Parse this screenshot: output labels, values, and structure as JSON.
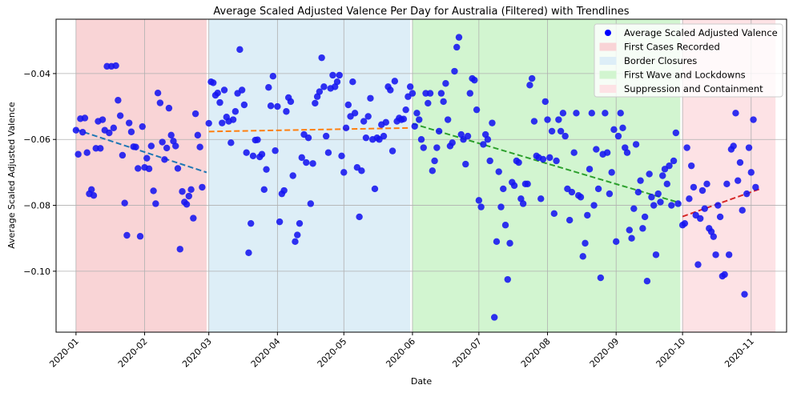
{
  "chart_data": {
    "type": "scatter",
    "title": "Average Scaled Adjusted Valence Per Day for Australia (Filtered) with Trendlines",
    "xlabel": "Date",
    "ylabel": "Average Scaled Adjusted Valence",
    "xlim": [
      "2019-12-23",
      "2020-11-17"
    ],
    "ylim": [
      -0.1185,
      -0.0235
    ],
    "x_ticks": [
      "2020-01",
      "2020-02",
      "2020-03",
      "2020-04",
      "2020-05",
      "2020-06",
      "2020-07",
      "2020-08",
      "2020-09",
      "2020-10",
      "2020-11"
    ],
    "y_ticks": [
      -0.04,
      -0.06,
      -0.08,
      -0.1
    ],
    "grid": true,
    "legend_position": "top-right",
    "points_color": "#1515f0",
    "periods": [
      {
        "name": "First Cases Recorded",
        "start": "2020-01-01",
        "end": "2020-02-29",
        "color": "#f9d4d6"
      },
      {
        "name": "Border Closures",
        "start": "2020-03-01",
        "end": "2020-05-31",
        "color": "#ddeef7"
      },
      {
        "name": "First Wave and Lockdowns",
        "start": "2020-06-01",
        "end": "2020-09-30",
        "color": "#d2f5d0"
      },
      {
        "name": "Suppression and Containment",
        "start": "2020-10-01",
        "end": "2020-11-12",
        "color": "#fde2e5"
      }
    ],
    "legend_scatter_label": "Average Scaled Adjusted Valence",
    "trendlines": [
      {
        "color": "#1f77b4",
        "x": [
          "2020-01-01",
          "2020-02-29"
        ],
        "y": [
          -0.057,
          -0.07
        ]
      },
      {
        "color": "#ff7f0e",
        "x": [
          "2020-03-01",
          "2020-05-31"
        ],
        "y": [
          -0.0576,
          -0.0565
        ]
      },
      {
        "color": "#2ca02c",
        "x": [
          "2020-06-01",
          "2020-09-30"
        ],
        "y": [
          -0.0552,
          -0.0793
        ]
      },
      {
        "color": "#d62728",
        "x": [
          "2020-10-01",
          "2020-11-05"
        ],
        "y": [
          -0.0834,
          -0.075
        ]
      }
    ],
    "points": [
      [
        "2020-01-01",
        -0.0572
      ],
      [
        "2020-01-02",
        -0.0645
      ],
      [
        "2020-01-03",
        -0.0537
      ],
      [
        "2020-01-04",
        -0.0578
      ],
      [
        "2020-01-05",
        -0.0535
      ],
      [
        "2020-01-06",
        -0.064
      ],
      [
        "2020-01-07",
        -0.0765
      ],
      [
        "2020-01-08",
        -0.0752
      ],
      [
        "2020-01-09",
        -0.077
      ],
      [
        "2020-01-10",
        -0.0627
      ],
      [
        "2020-01-11",
        -0.0545
      ],
      [
        "2020-01-12",
        -0.0627
      ],
      [
        "2020-01-13",
        -0.054
      ],
      [
        "2020-01-14",
        -0.0572
      ],
      [
        "2020-01-15",
        -0.0378
      ],
      [
        "2020-01-16",
        -0.058
      ],
      [
        "2020-01-17",
        -0.0378
      ],
      [
        "2020-01-18",
        -0.0565
      ],
      [
        "2020-01-19",
        -0.0376
      ],
      [
        "2020-01-20",
        -0.0481
      ],
      [
        "2020-01-21",
        -0.0528
      ],
      [
        "2020-01-22",
        -0.0648
      ],
      [
        "2020-01-23",
        -0.0793
      ],
      [
        "2020-01-24",
        -0.0891
      ],
      [
        "2020-01-25",
        -0.055
      ],
      [
        "2020-01-26",
        -0.0577
      ],
      [
        "2020-01-27",
        -0.0622
      ],
      [
        "2020-01-28",
        -0.0623
      ],
      [
        "2020-01-29",
        -0.0688
      ],
      [
        "2020-01-30",
        -0.0894
      ],
      [
        "2020-01-31",
        -0.0561
      ],
      [
        "2020-02-01",
        -0.0685
      ],
      [
        "2020-02-02",
        -0.0657
      ],
      [
        "2020-02-03",
        -0.0689
      ],
      [
        "2020-02-04",
        -0.062
      ],
      [
        "2020-02-05",
        -0.0756
      ],
      [
        "2020-02-06",
        -0.0795
      ],
      [
        "2020-02-07",
        -0.0459
      ],
      [
        "2020-02-08",
        -0.0489
      ],
      [
        "2020-02-09",
        -0.0608
      ],
      [
        "2020-02-10",
        -0.0661
      ],
      [
        "2020-02-11",
        -0.0626
      ],
      [
        "2020-02-12",
        -0.0505
      ],
      [
        "2020-02-13",
        -0.0587
      ],
      [
        "2020-02-14",
        -0.0605
      ],
      [
        "2020-02-15",
        -0.062
      ],
      [
        "2020-02-16",
        -0.0688
      ],
      [
        "2020-02-17",
        -0.0933
      ],
      [
        "2020-02-18",
        -0.0758
      ],
      [
        "2020-02-19",
        -0.079
      ],
      [
        "2020-02-20",
        -0.0797
      ],
      [
        "2020-02-21",
        -0.0772
      ],
      [
        "2020-02-22",
        -0.0752
      ],
      [
        "2020-02-23",
        -0.0839
      ],
      [
        "2020-02-24",
        -0.0522
      ],
      [
        "2020-02-25",
        -0.0587
      ],
      [
        "2020-02-26",
        -0.0623
      ],
      [
        "2020-02-27",
        -0.0745
      ],
      [
        "2020-03-01",
        -0.0551
      ],
      [
        "2020-03-02",
        -0.0425
      ],
      [
        "2020-03-03",
        -0.0428
      ],
      [
        "2020-03-04",
        -0.0466
      ],
      [
        "2020-03-05",
        -0.0459
      ],
      [
        "2020-03-06",
        -0.0488
      ],
      [
        "2020-03-07",
        -0.055
      ],
      [
        "2020-03-08",
        -0.045
      ],
      [
        "2020-03-09",
        -0.0532
      ],
      [
        "2020-03-10",
        -0.0545
      ],
      [
        "2020-03-11",
        -0.061
      ],
      [
        "2020-03-12",
        -0.054
      ],
      [
        "2020-03-13",
        -0.0515
      ],
      [
        "2020-03-14",
        -0.046
      ],
      [
        "2020-03-15",
        -0.0327
      ],
      [
        "2020-03-16",
        -0.045
      ],
      [
        "2020-03-17",
        -0.0495
      ],
      [
        "2020-03-18",
        -0.064
      ],
      [
        "2020-03-19",
        -0.0944
      ],
      [
        "2020-03-20",
        -0.0855
      ],
      [
        "2020-03-21",
        -0.065
      ],
      [
        "2020-03-22",
        -0.0602
      ],
      [
        "2020-03-23",
        -0.0601
      ],
      [
        "2020-03-24",
        -0.0653
      ],
      [
        "2020-03-25",
        -0.0645
      ],
      [
        "2020-03-26",
        -0.0752
      ],
      [
        "2020-03-27",
        -0.0691
      ],
      [
        "2020-03-28",
        -0.0442
      ],
      [
        "2020-03-29",
        -0.0498
      ],
      [
        "2020-03-30",
        -0.0408
      ],
      [
        "2020-03-31",
        -0.0634
      ],
      [
        "2020-04-01",
        -0.05
      ],
      [
        "2020-04-02",
        -0.085
      ],
      [
        "2020-04-03",
        -0.0765
      ],
      [
        "2020-04-04",
        -0.0755
      ],
      [
        "2020-04-05",
        -0.0515
      ],
      [
        "2020-04-06",
        -0.0473
      ],
      [
        "2020-04-07",
        -0.0485
      ],
      [
        "2020-04-08",
        -0.071
      ],
      [
        "2020-04-09",
        -0.091
      ],
      [
        "2020-04-10",
        -0.089
      ],
      [
        "2020-04-11",
        -0.0855
      ],
      [
        "2020-04-12",
        -0.0655
      ],
      [
        "2020-04-13",
        -0.0585
      ],
      [
        "2020-04-14",
        -0.067
      ],
      [
        "2020-04-15",
        -0.0595
      ],
      [
        "2020-04-16",
        -0.0795
      ],
      [
        "2020-04-17",
        -0.0673
      ],
      [
        "2020-04-18",
        -0.049
      ],
      [
        "2020-04-19",
        -0.047
      ],
      [
        "2020-04-20",
        -0.0455
      ],
      [
        "2020-04-21",
        -0.0352
      ],
      [
        "2020-04-22",
        -0.044
      ],
      [
        "2020-04-23",
        -0.059
      ],
      [
        "2020-04-24",
        -0.064
      ],
      [
        "2020-04-25",
        -0.0445
      ],
      [
        "2020-04-26",
        -0.0405
      ],
      [
        "2020-04-27",
        -0.044
      ],
      [
        "2020-04-28",
        -0.0425
      ],
      [
        "2020-04-29",
        -0.0405
      ],
      [
        "2020-04-30",
        -0.065
      ],
      [
        "2020-05-01",
        -0.07
      ],
      [
        "2020-05-02",
        -0.0565
      ],
      [
        "2020-05-03",
        -0.0495
      ],
      [
        "2020-05-04",
        -0.053
      ],
      [
        "2020-05-05",
        -0.0425
      ],
      [
        "2020-05-06",
        -0.052
      ],
      [
        "2020-05-07",
        -0.0685
      ],
      [
        "2020-05-08",
        -0.0835
      ],
      [
        "2020-05-09",
        -0.0695
      ],
      [
        "2020-05-10",
        -0.0545
      ],
      [
        "2020-05-11",
        -0.0595
      ],
      [
        "2020-05-12",
        -0.053
      ],
      [
        "2020-05-13",
        -0.0475
      ],
      [
        "2020-05-14",
        -0.06
      ],
      [
        "2020-05-15",
        -0.075
      ],
      [
        "2020-05-16",
        -0.0595
      ],
      [
        "2020-05-17",
        -0.06
      ],
      [
        "2020-05-18",
        -0.0555
      ],
      [
        "2020-05-19",
        -0.059
      ],
      [
        "2020-05-20",
        -0.0548
      ],
      [
        "2020-05-21",
        -0.044
      ],
      [
        "2020-05-22",
        -0.045
      ],
      [
        "2020-05-23",
        -0.0635
      ],
      [
        "2020-05-24",
        -0.0423
      ],
      [
        "2020-05-25",
        -0.0545
      ],
      [
        "2020-05-26",
        -0.0535
      ],
      [
        "2020-05-27",
        -0.054
      ],
      [
        "2020-05-28",
        -0.0538
      ],
      [
        "2020-05-29",
        -0.051
      ],
      [
        "2020-05-30",
        -0.047
      ],
      [
        "2020-05-31",
        -0.044
      ],
      [
        "2020-06-01",
        -0.046
      ],
      [
        "2020-06-02",
        -0.056
      ],
      [
        "2020-06-03",
        -0.052
      ],
      [
        "2020-06-04",
        -0.054
      ],
      [
        "2020-06-05",
        -0.06
      ],
      [
        "2020-06-06",
        -0.0625
      ],
      [
        "2020-06-07",
        -0.046
      ],
      [
        "2020-06-08",
        -0.049
      ],
      [
        "2020-06-09",
        -0.046
      ],
      [
        "2020-06-10",
        -0.0695
      ],
      [
        "2020-06-11",
        -0.0665
      ],
      [
        "2020-06-12",
        -0.0625
      ],
      [
        "2020-06-13",
        -0.0575
      ],
      [
        "2020-06-14",
        -0.046
      ],
      [
        "2020-06-15",
        -0.0485
      ],
      [
        "2020-06-16",
        -0.043
      ],
      [
        "2020-06-17",
        -0.054
      ],
      [
        "2020-06-18",
        -0.062
      ],
      [
        "2020-06-19",
        -0.061
      ],
      [
        "2020-06-20",
        -0.0393
      ],
      [
        "2020-06-21",
        -0.032
      ],
      [
        "2020-06-22",
        -0.029
      ],
      [
        "2020-06-23",
        -0.0585
      ],
      [
        "2020-06-24",
        -0.06
      ],
      [
        "2020-06-25",
        -0.0675
      ],
      [
        "2020-06-26",
        -0.059
      ],
      [
        "2020-06-27",
        -0.046
      ],
      [
        "2020-06-28",
        -0.0415
      ],
      [
        "2020-06-29",
        -0.042
      ],
      [
        "2020-06-30",
        -0.051
      ],
      [
        "2020-07-01",
        -0.0785
      ],
      [
        "2020-07-02",
        -0.0805
      ],
      [
        "2020-07-03",
        -0.0615
      ],
      [
        "2020-07-04",
        -0.0585
      ],
      [
        "2020-07-05",
        -0.06
      ],
      [
        "2020-07-06",
        -0.0665
      ],
      [
        "2020-07-07",
        -0.055
      ],
      [
        "2020-07-08",
        -0.114
      ],
      [
        "2020-07-09",
        -0.091
      ],
      [
        "2020-07-10",
        -0.0698
      ],
      [
        "2020-07-11",
        -0.0805
      ],
      [
        "2020-07-12",
        -0.075
      ],
      [
        "2020-07-13",
        -0.086
      ],
      [
        "2020-07-14",
        -0.1025
      ],
      [
        "2020-07-15",
        -0.0915
      ],
      [
        "2020-07-16",
        -0.073
      ],
      [
        "2020-07-17",
        -0.074
      ],
      [
        "2020-07-18",
        -0.0665
      ],
      [
        "2020-07-19",
        -0.067
      ],
      [
        "2020-07-20",
        -0.078
      ],
      [
        "2020-07-21",
        -0.0795
      ],
      [
        "2020-07-22",
        -0.0735
      ],
      [
        "2020-07-23",
        -0.0735
      ],
      [
        "2020-07-24",
        -0.0435
      ],
      [
        "2020-07-25",
        -0.0415
      ],
      [
        "2020-07-26",
        -0.0545
      ],
      [
        "2020-07-27",
        -0.065
      ],
      [
        "2020-07-28",
        -0.0655
      ],
      [
        "2020-07-29",
        -0.078
      ],
      [
        "2020-07-30",
        -0.066
      ],
      [
        "2020-07-31",
        -0.0485
      ],
      [
        "2020-08-01",
        -0.054
      ],
      [
        "2020-08-02",
        -0.0655
      ],
      [
        "2020-08-03",
        -0.0575
      ],
      [
        "2020-08-04",
        -0.0825
      ],
      [
        "2020-08-05",
        -0.0665
      ],
      [
        "2020-08-06",
        -0.054
      ],
      [
        "2020-08-07",
        -0.0575
      ],
      [
        "2020-08-08",
        -0.052
      ],
      [
        "2020-08-09",
        -0.059
      ],
      [
        "2020-08-10",
        -0.075
      ],
      [
        "2020-08-11",
        -0.0845
      ],
      [
        "2020-08-12",
        -0.076
      ],
      [
        "2020-08-13",
        -0.064
      ],
      [
        "2020-08-14",
        -0.052
      ],
      [
        "2020-08-15",
        -0.077
      ],
      [
        "2020-08-16",
        -0.0775
      ],
      [
        "2020-08-17",
        -0.0955
      ],
      [
        "2020-08-18",
        -0.0915
      ],
      [
        "2020-08-19",
        -0.083
      ],
      [
        "2020-08-20",
        -0.069
      ],
      [
        "2020-08-21",
        -0.052
      ],
      [
        "2020-08-22",
        -0.08
      ],
      [
        "2020-08-23",
        -0.063
      ],
      [
        "2020-08-24",
        -0.075
      ],
      [
        "2020-08-25",
        -0.102
      ],
      [
        "2020-08-26",
        -0.0645
      ],
      [
        "2020-08-27",
        -0.052
      ],
      [
        "2020-08-28",
        -0.064
      ],
      [
        "2020-08-29",
        -0.0765
      ],
      [
        "2020-08-30",
        -0.07
      ],
      [
        "2020-08-31",
        -0.057
      ],
      [
        "2020-09-01",
        -0.091
      ],
      [
        "2020-09-02",
        -0.059
      ],
      [
        "2020-09-03",
        -0.052
      ],
      [
        "2020-09-04",
        -0.0565
      ],
      [
        "2020-09-05",
        -0.0625
      ],
      [
        "2020-09-06",
        -0.064
      ],
      [
        "2020-09-07",
        -0.0875
      ],
      [
        "2020-09-08",
        -0.09
      ],
      [
        "2020-09-09",
        -0.081
      ],
      [
        "2020-09-10",
        -0.0615
      ],
      [
        "2020-09-11",
        -0.076
      ],
      [
        "2020-09-12",
        -0.0725
      ],
      [
        "2020-09-13",
        -0.087
      ],
      [
        "2020-09-14",
        -0.0835
      ],
      [
        "2020-09-15",
        -0.103
      ],
      [
        "2020-09-16",
        -0.0705
      ],
      [
        "2020-09-17",
        -0.0775
      ],
      [
        "2020-09-18",
        -0.08
      ],
      [
        "2020-09-19",
        -0.095
      ],
      [
        "2020-09-20",
        -0.0765
      ],
      [
        "2020-09-21",
        -0.079
      ],
      [
        "2020-09-22",
        -0.071
      ],
      [
        "2020-09-23",
        -0.069
      ],
      [
        "2020-09-24",
        -0.0735
      ],
      [
        "2020-09-25",
        -0.068
      ],
      [
        "2020-09-26",
        -0.08
      ],
      [
        "2020-09-27",
        -0.0665
      ],
      [
        "2020-09-28",
        -0.058
      ],
      [
        "2020-09-29",
        -0.0795
      ],
      [
        "2020-10-01",
        -0.086
      ],
      [
        "2020-10-02",
        -0.0855
      ],
      [
        "2020-10-03",
        -0.0625
      ],
      [
        "2020-10-04",
        -0.078
      ],
      [
        "2020-10-05",
        -0.068
      ],
      [
        "2020-10-06",
        -0.0745
      ],
      [
        "2020-10-07",
        -0.083
      ],
      [
        "2020-10-08",
        -0.098
      ],
      [
        "2020-10-09",
        -0.084
      ],
      [
        "2020-10-10",
        -0.0755
      ],
      [
        "2020-10-11",
        -0.081
      ],
      [
        "2020-10-12",
        -0.0735
      ],
      [
        "2020-10-13",
        -0.087
      ],
      [
        "2020-10-14",
        -0.088
      ],
      [
        "2020-10-15",
        -0.0895
      ],
      [
        "2020-10-16",
        -0.095
      ],
      [
        "2020-10-17",
        -0.08
      ],
      [
        "2020-10-18",
        -0.0835
      ],
      [
        "2020-10-19",
        -0.1015
      ],
      [
        "2020-10-20",
        -0.101
      ],
      [
        "2020-10-21",
        -0.0735
      ],
      [
        "2020-10-22",
        -0.095
      ],
      [
        "2020-10-23",
        -0.063
      ],
      [
        "2020-10-24",
        -0.062
      ],
      [
        "2020-10-25",
        -0.052
      ],
      [
        "2020-10-26",
        -0.0725
      ],
      [
        "2020-10-27",
        -0.067
      ],
      [
        "2020-10-28",
        -0.0815
      ],
      [
        "2020-10-29",
        -0.107
      ],
      [
        "2020-10-30",
        -0.0765
      ],
      [
        "2020-10-31",
        -0.0625
      ],
      [
        "2020-11-01",
        -0.07
      ],
      [
        "2020-11-02",
        -0.054
      ],
      [
        "2020-11-03",
        -0.0745
      ]
    ]
  }
}
